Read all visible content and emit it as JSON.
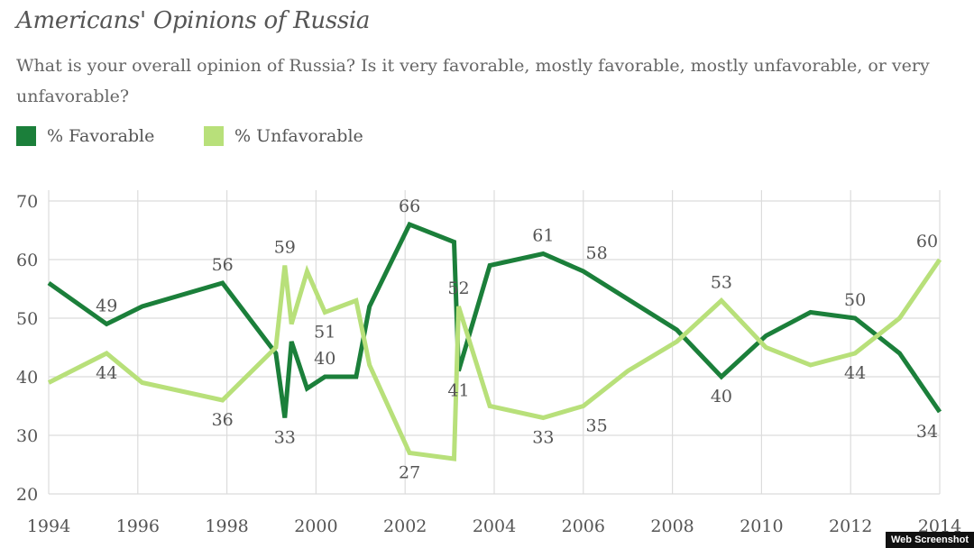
{
  "chart_data": {
    "type": "line",
    "title": "Americans' Opinions of Russia",
    "subtitle": "What is your overall opinion of Russia? Is it very favorable, mostly favorable, mostly unfavorable, or very unfavorable?",
    "xlim": [
      1994,
      2014
    ],
    "ylim": [
      20,
      70
    ],
    "x_ticks": [
      "1994",
      "1996",
      "1998",
      "2000",
      "2002",
      "2004",
      "2006",
      "2008",
      "2010",
      "2012",
      "2014"
    ],
    "y_ticks": [
      "70",
      "60",
      "50",
      "40",
      "30",
      "20"
    ],
    "grid": true,
    "legend_position": "top-left",
    "series": [
      {
        "name": "% Favorable",
        "color": "#1b7f3a",
        "points": [
          [
            1994.0,
            56
          ],
          [
            1995.3,
            49
          ],
          [
            1996.1,
            52
          ],
          [
            1997.9,
            56
          ],
          [
            1999.1,
            44
          ],
          [
            1999.3,
            33
          ],
          [
            1999.45,
            46
          ],
          [
            1999.8,
            38
          ],
          [
            2000.2,
            40
          ],
          [
            2000.9,
            40
          ],
          [
            2001.2,
            52
          ],
          [
            2002.1,
            66
          ],
          [
            2003.1,
            63
          ],
          [
            2003.2,
            41
          ],
          [
            2003.9,
            59
          ],
          [
            2005.1,
            61
          ],
          [
            2006.0,
            58
          ],
          [
            2008.1,
            48
          ],
          [
            2009.1,
            40
          ],
          [
            2010.1,
            47
          ],
          [
            2011.1,
            51
          ],
          [
            2012.1,
            50
          ],
          [
            2013.1,
            44
          ],
          [
            2014.0,
            34
          ]
        ],
        "labels": [
          {
            "x": 1995.3,
            "y": 49,
            "text": "49",
            "pos": "above"
          },
          {
            "x": 1997.9,
            "y": 56,
            "text": "56",
            "pos": "above"
          },
          {
            "x": 1999.3,
            "y": 33,
            "text": "33",
            "pos": "below"
          },
          {
            "x": 2000.2,
            "y": 40,
            "text": "40",
            "pos": "above"
          },
          {
            "x": 2002.1,
            "y": 66,
            "text": "66",
            "pos": "above"
          },
          {
            "x": 2003.2,
            "y": 41,
            "text": "41",
            "pos": "below"
          },
          {
            "x": 2005.1,
            "y": 61,
            "text": "61",
            "pos": "above"
          },
          {
            "x": 2006.3,
            "y": 58,
            "text": "58",
            "pos": "above"
          },
          {
            "x": 2009.1,
            "y": 40,
            "text": "40",
            "pos": "below"
          },
          {
            "x": 2012.1,
            "y": 50,
            "text": "50",
            "pos": "above"
          },
          {
            "x": 2014.0,
            "y": 34,
            "text": "34",
            "pos": "below"
          }
        ]
      },
      {
        "name": "% Unfavorable",
        "color": "#b8e07a",
        "points": [
          [
            1994.0,
            39
          ],
          [
            1995.3,
            44
          ],
          [
            1996.1,
            39
          ],
          [
            1997.9,
            36
          ],
          [
            1999.1,
            45
          ],
          [
            1999.3,
            59
          ],
          [
            1999.45,
            49
          ],
          [
            1999.8,
            58
          ],
          [
            2000.2,
            51
          ],
          [
            2000.9,
            53
          ],
          [
            2001.2,
            42
          ],
          [
            2002.1,
            27
          ],
          [
            2003.1,
            26
          ],
          [
            2003.2,
            52
          ],
          [
            2003.9,
            35
          ],
          [
            2005.1,
            33
          ],
          [
            2006.0,
            35
          ],
          [
            2007.0,
            41
          ],
          [
            2008.1,
            46
          ],
          [
            2009.1,
            53
          ],
          [
            2010.1,
            45
          ],
          [
            2011.1,
            42
          ],
          [
            2012.1,
            44
          ],
          [
            2013.1,
            50
          ],
          [
            2014.0,
            60
          ]
        ],
        "labels": [
          {
            "x": 1995.3,
            "y": 44,
            "text": "44",
            "pos": "below"
          },
          {
            "x": 1997.9,
            "y": 36,
            "text": "36",
            "pos": "below"
          },
          {
            "x": 1999.3,
            "y": 59,
            "text": "59",
            "pos": "above"
          },
          {
            "x": 2000.2,
            "y": 51,
            "text": "51",
            "pos": "below"
          },
          {
            "x": 2002.1,
            "y": 27,
            "text": "27",
            "pos": "below"
          },
          {
            "x": 2003.2,
            "y": 52,
            "text": "52",
            "pos": "above"
          },
          {
            "x": 2005.1,
            "y": 33,
            "text": "33",
            "pos": "below"
          },
          {
            "x": 2006.3,
            "y": 35,
            "text": "35",
            "pos": "below"
          },
          {
            "x": 2009.1,
            "y": 53,
            "text": "53",
            "pos": "above"
          },
          {
            "x": 2012.1,
            "y": 44,
            "text": "44",
            "pos": "below"
          },
          {
            "x": 2014.0,
            "y": 60,
            "text": "60",
            "pos": "above"
          }
        ]
      }
    ]
  },
  "watermark": "Web Screenshot"
}
